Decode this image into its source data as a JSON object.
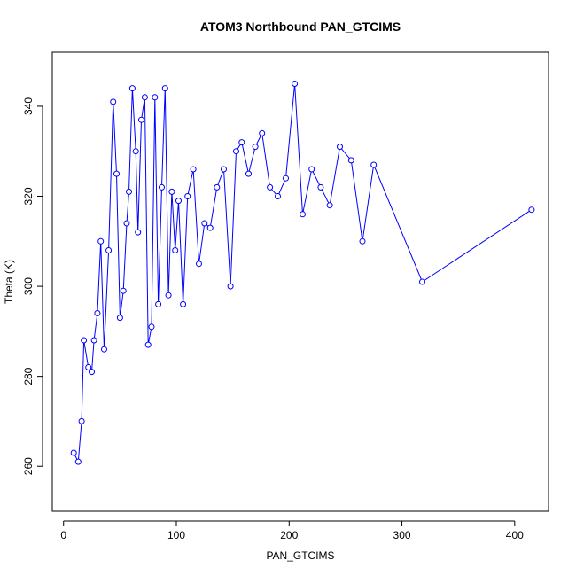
{
  "chart_data": {
    "type": "line",
    "title": "ATOM3 Northbound PAN_GTCIMS",
    "xlabel": "PAN_GTCIMS",
    "ylabel": "Theta (K)",
    "xlim": [
      -10,
      430
    ],
    "ylim": [
      250,
      352
    ],
    "xticks": [
      0,
      100,
      200,
      300,
      400
    ],
    "yticks": [
      260,
      280,
      300,
      320,
      340
    ],
    "grid": false,
    "legend": "none",
    "series_color": "#0000ff",
    "series": [
      {
        "x": [
          9,
          13,
          16,
          18,
          22,
          25,
          27,
          30,
          33,
          36,
          40,
          44,
          47,
          50,
          53,
          56,
          58,
          61,
          64,
          66,
          69,
          72,
          75,
          78,
          81,
          84,
          87,
          90,
          93,
          96,
          99,
          102,
          106,
          110,
          115,
          120,
          125,
          130,
          136,
          142,
          148,
          153,
          158,
          164,
          170,
          176,
          183,
          190,
          197,
          205,
          212,
          220,
          228,
          236,
          245,
          255,
          265,
          275,
          318,
          415
        ],
        "y": [
          263,
          261,
          270,
          288,
          282,
          281,
          288,
          294,
          310,
          286,
          308,
          341,
          325,
          293,
          299,
          314,
          321,
          344,
          330,
          312,
          337,
          342,
          287,
          291,
          342,
          296,
          322,
          344,
          298,
          321,
          308,
          319,
          296,
          320,
          326,
          305,
          314,
          313,
          322,
          326,
          300,
          330,
          332,
          325,
          331,
          334,
          322,
          320,
          324,
          345,
          316,
          326,
          322,
          318,
          331,
          328,
          310,
          327,
          301,
          317
        ]
      }
    ]
  }
}
